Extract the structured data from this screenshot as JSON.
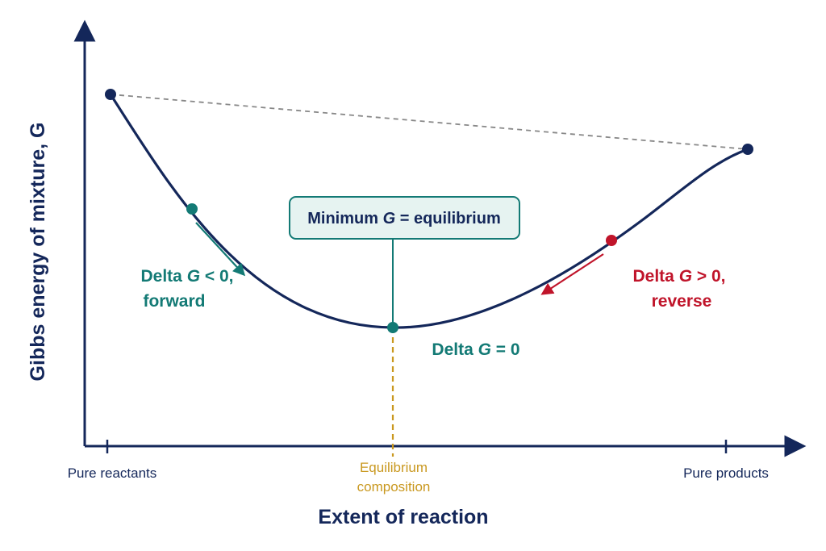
{
  "colors": {
    "navy": "#14275a",
    "teal": "#137a75",
    "red": "#c0142a",
    "gold": "#c9981f",
    "dashed": "#888888",
    "callout_fill": "#e6f3f1"
  },
  "axes": {
    "y_title": "Gibbs energy of mixture, G",
    "x_title": "Extent of reaction",
    "x_left_label": "Pure reactants",
    "x_right_label": "Pure products",
    "x_mid_label_line1": "Equilibrium",
    "x_mid_label_line2": "composition"
  },
  "callout": {
    "pre": "Minimum ",
    "symbol": "G",
    "post": " = equilibrium"
  },
  "notes": {
    "forward": {
      "pre": "Delta ",
      "symbol": "G",
      "post": " < 0,",
      "line2": "forward"
    },
    "reverse": {
      "pre": "Delta ",
      "symbol": "G",
      "post": " > 0,",
      "line2": "reverse"
    },
    "equilibrium": {
      "pre": "Delta ",
      "symbol": "G",
      "post": " = 0"
    }
  },
  "icons": {
    "forward_arrow": "arrow-down-right",
    "reverse_arrow": "arrow-down-left"
  }
}
